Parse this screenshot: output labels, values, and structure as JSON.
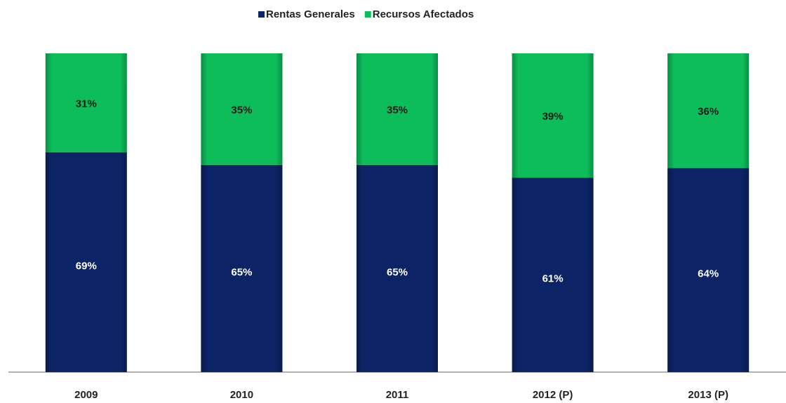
{
  "chart_data": {
    "type": "stacked_bar",
    "categories": [
      "2009",
      "2010",
      "2011",
      "2012 (P)",
      "2013 (P)"
    ],
    "series": [
      {
        "name": "Rentas Generales",
        "color": "#0c2466",
        "values": [
          69,
          65,
          65,
          61,
          64
        ],
        "value_labels": [
          "69%",
          "65%",
          "65%",
          "61%",
          "64%"
        ]
      },
      {
        "name": "Recursos Afectados",
        "color": "#0dbd5a",
        "values": [
          31,
          35,
          35,
          39,
          36
        ],
        "value_labels": [
          "31%",
          "35%",
          "35%",
          "39%",
          "36%"
        ]
      }
    ],
    "ylim": [
      0,
      100
    ],
    "legend": "top"
  }
}
